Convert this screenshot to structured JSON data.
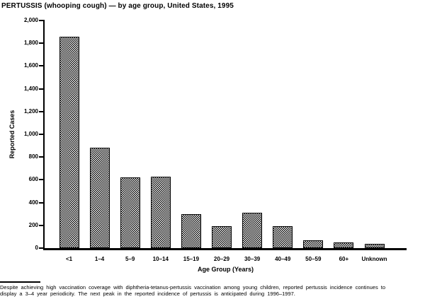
{
  "chart_data": {
    "type": "bar",
    "title": "PERTUSSIS (whooping cough) — by age group, United States, 1995",
    "xlabel": "Age Group (Years)",
    "ylabel": "Reported Cases",
    "categories": [
      "<1",
      "1–4",
      "5–9",
      "10–14",
      "15–19",
      "20–29",
      "30–39",
      "40–49",
      "50–59",
      "60+",
      "Unknown"
    ],
    "values": [
      1860,
      885,
      620,
      630,
      300,
      190,
      310,
      195,
      70,
      50,
      35
    ],
    "ylim": [
      0,
      2000
    ],
    "ytick_interval": 200,
    "ytick_labels": [
      "0",
      "200",
      "400",
      "600",
      "800",
      "1,000",
      "1,200",
      "1,400",
      "1,600",
      "1,800",
      "2,000"
    ],
    "grid": false,
    "legend": "none",
    "bar_fill": "black-white dither pattern",
    "bar_border_color": "#000000",
    "axis_color": "#000000",
    "text_color": "#000000",
    "background_color": "#ffffff"
  },
  "footnote": {
    "line1": "Despite achieving high vaccination coverage with diphtheria-tetanus-pertussis vaccination among young children, reported pertussis incidence continues to",
    "line2": "display a 3–4 year periodicity. The next peak in the reported incidence of pertussis is anticipated during 1996–1997."
  }
}
